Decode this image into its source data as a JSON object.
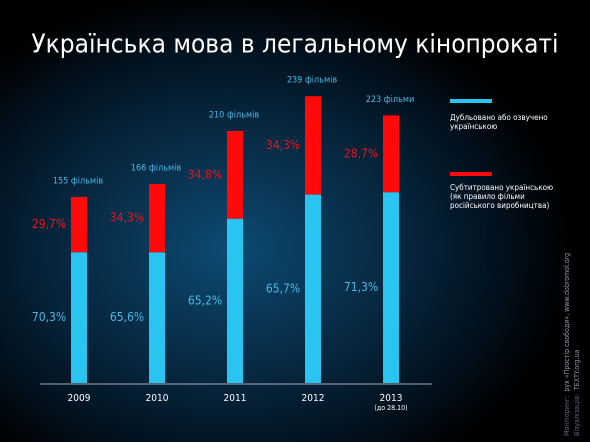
{
  "chart_data": {
    "type": "bar",
    "title": "Українська мова в легальному кінопрокаті",
    "categories": [
      "2009",
      "2010",
      "2011",
      "2012",
      "2013"
    ],
    "category_notes": [
      null,
      null,
      null,
      null,
      "(до 28.10)"
    ],
    "totals": {
      "values": [
        155,
        166,
        210,
        239,
        223
      ],
      "value_labels": [
        "155 фільмів",
        "166 фільмів",
        "210 фільмів",
        "239 фільмів",
        "223 фільми"
      ],
      "color": "#4ab8e0"
    },
    "series": [
      {
        "name": "Дубльовано або озвучено українською",
        "color": "#29c5f0",
        "label_color": "#4ab8e0",
        "values": [
          70.3,
          65.6,
          65.2,
          65.7,
          71.3
        ],
        "value_labels": [
          "70,3%",
          "65,6%",
          "65,2%",
          "65,7%",
          "71,3%"
        ]
      },
      {
        "name": "Субтитровано українською (як правило фільми російського виробництва)",
        "color": "#ff0a0a",
        "label_color": "#e8141b",
        "values": [
          29.7,
          34.3,
          34.8,
          34.3,
          28.7
        ],
        "value_labels": [
          "29,7%",
          "34,3%",
          "34,8%",
          "34,3%",
          "28,7%"
        ]
      }
    ],
    "credits": [
      {
        "label": "Моніторинг:",
        "text": "рух «Простір свободи», www.dobromol.org"
      },
      {
        "label": "Візуалізація:",
        "text": "TEXTY.org.ua"
      }
    ]
  }
}
